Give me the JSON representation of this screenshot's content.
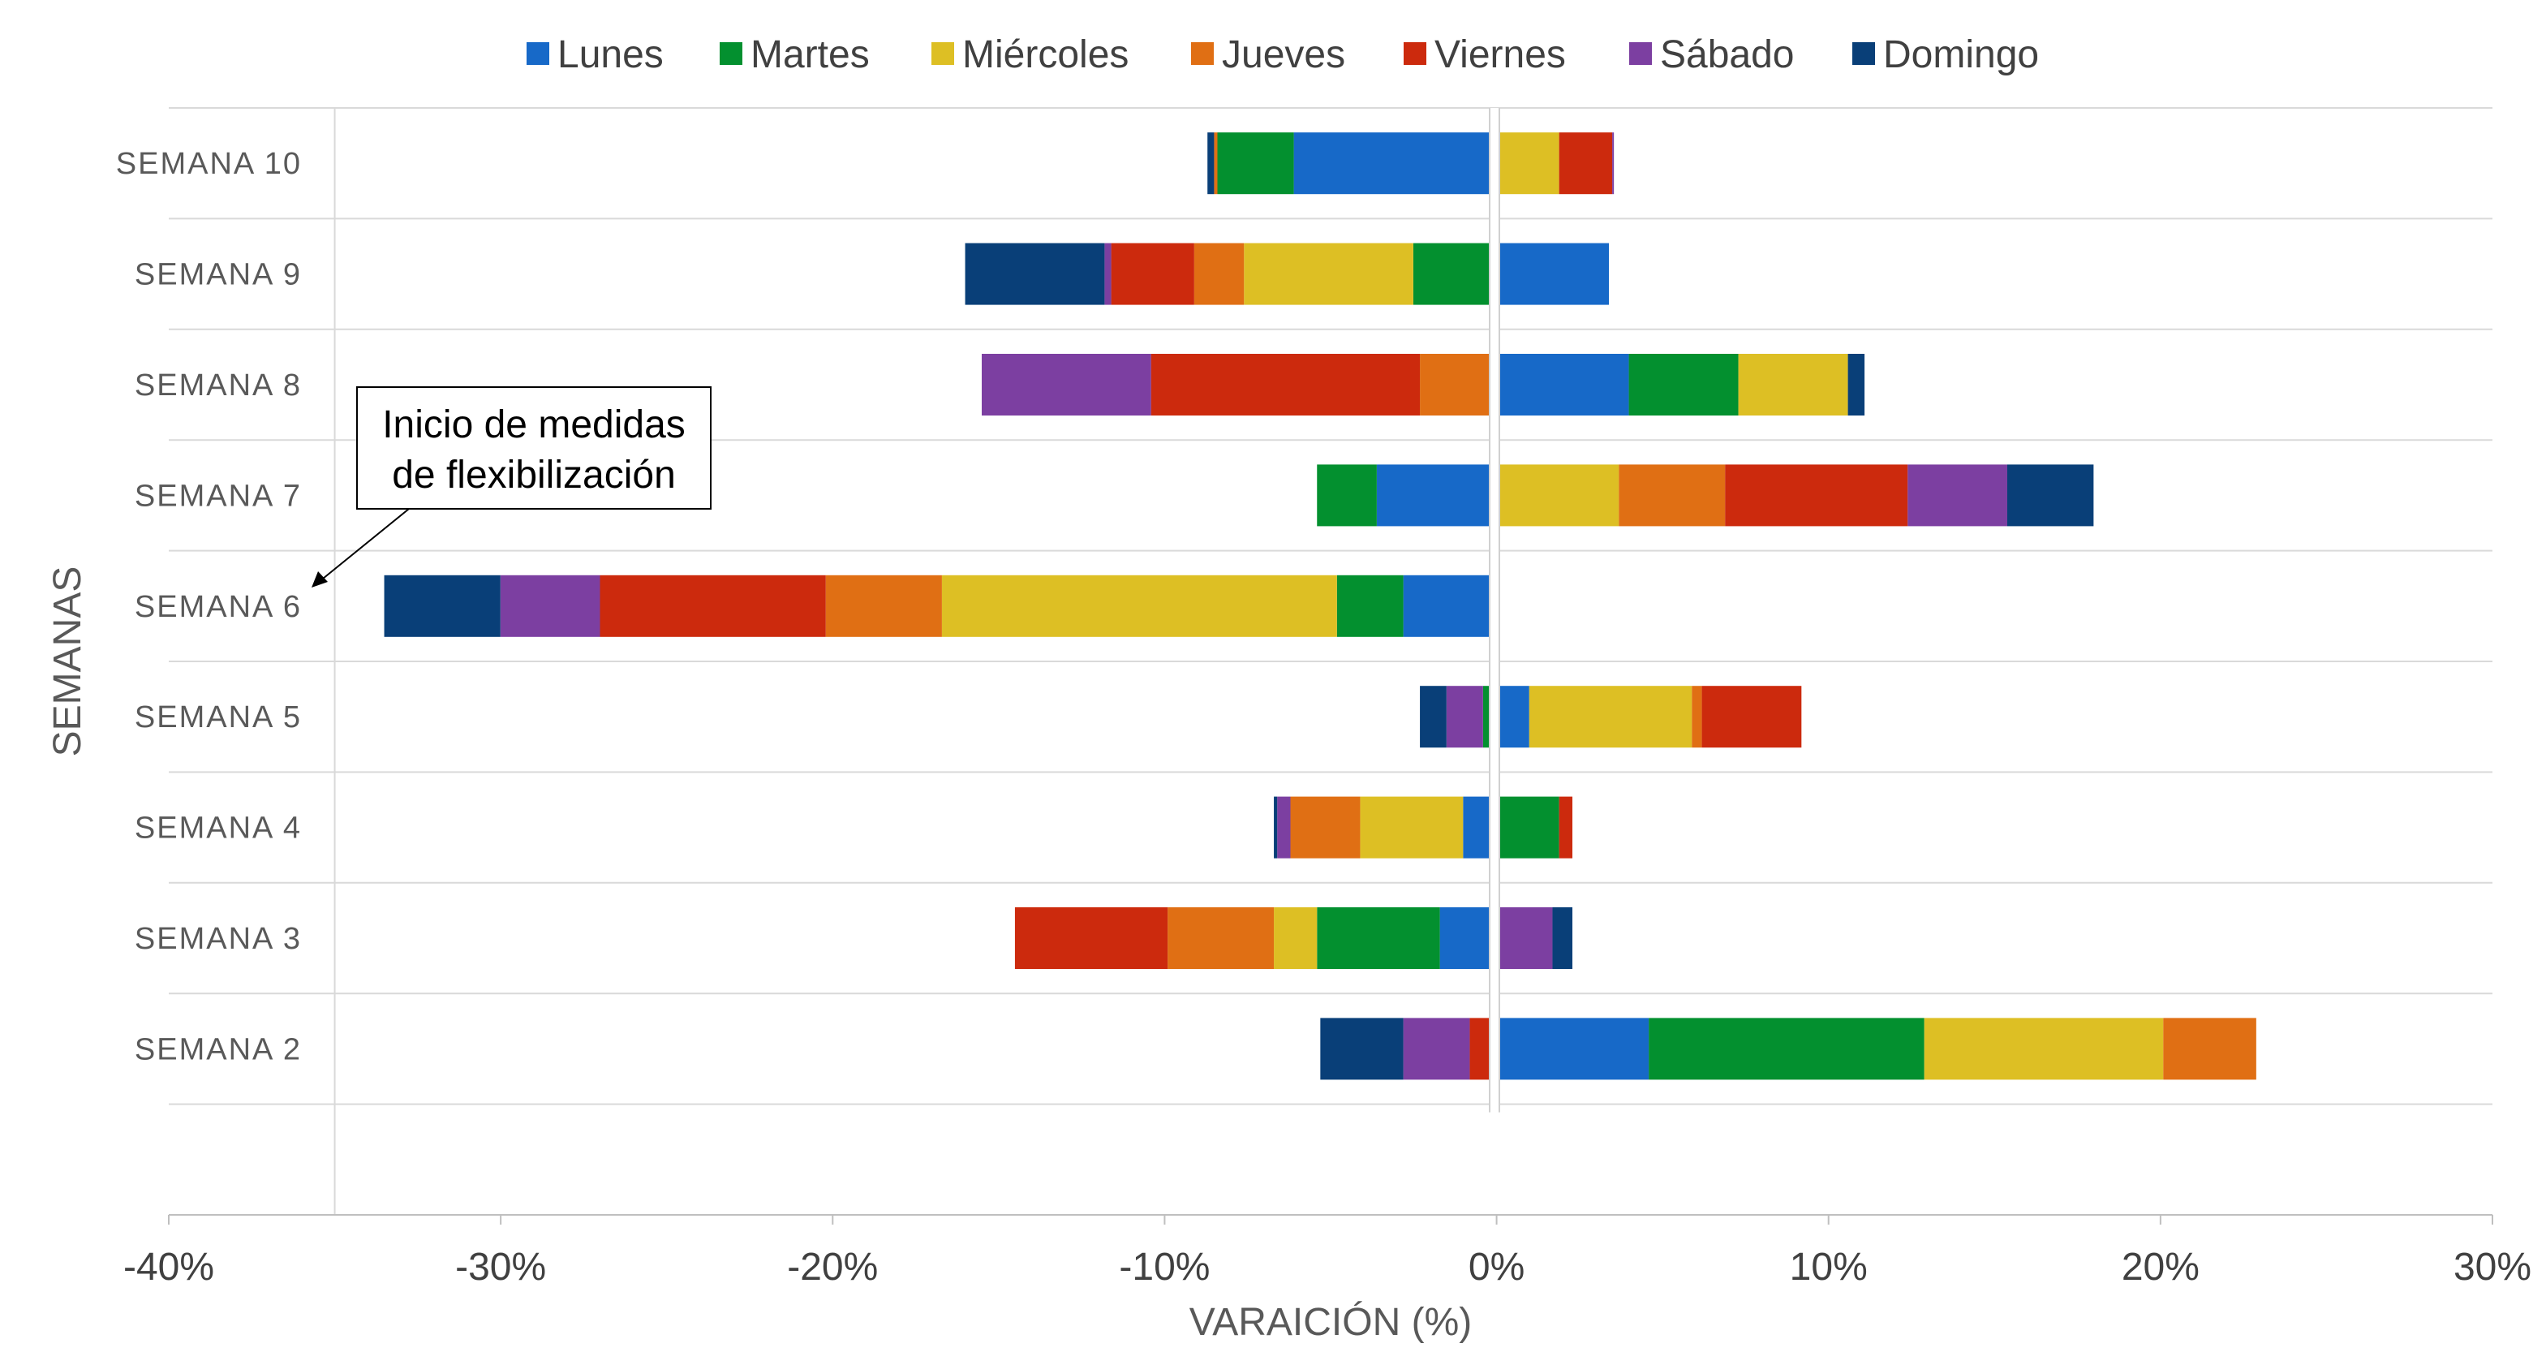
{
  "chart_data": {
    "type": "bar",
    "orientation": "horizontal",
    "stacked": "diverging",
    "xlabel": "VARAICIÓN (%)",
    "ylabel": "SEMANAS",
    "xlim": [
      -40,
      30
    ],
    "x_ticks": [
      "-40%",
      "-30%",
      "-20%",
      "-10%",
      "0%",
      "10%",
      "20%",
      "30%"
    ],
    "legend_position": "top",
    "grid": true,
    "categories": [
      "SEMANA 10",
      "SEMANA 9",
      "SEMANA 8",
      "SEMANA 7",
      "SEMANA 6",
      "SEMANA 5",
      "SEMANA 4",
      "SEMANA 3",
      "SEMANA 2"
    ],
    "series": [
      {
        "name": "Lunes",
        "color": "#1769C8",
        "values": [
          -5.9,
          3.3,
          3.9,
          -3.4,
          -2.6,
          0.9,
          -0.8,
          -1.5,
          4.5
        ]
      },
      {
        "name": "Martes",
        "color": "#03902F",
        "values": [
          -2.3,
          -2.3,
          3.3,
          -1.8,
          -2.0,
          -0.2,
          1.8,
          -3.7,
          8.3
        ]
      },
      {
        "name": "Miércoles",
        "color": "#DDBF24",
        "values": [
          1.8,
          -5.1,
          3.3,
          3.6,
          -11.9,
          4.9,
          -3.1,
          -1.3,
          7.2
        ]
      },
      {
        "name": "Jueves",
        "color": "#E06F14",
        "values": [
          -0.1,
          -1.5,
          -2.1,
          3.2,
          -3.5,
          0.3,
          -2.1,
          -3.2,
          2.8
        ]
      },
      {
        "name": "Viernes",
        "color": "#CC2A0D",
        "values": [
          1.6,
          -2.5,
          -8.1,
          5.5,
          -6.8,
          3.0,
          0.4,
          -4.6,
          -0.6
        ]
      },
      {
        "name": "Sábado",
        "color": "#7C3FA1",
        "values": [
          0.05,
          -0.2,
          -5.1,
          3.0,
          -3.0,
          -1.1,
          -0.4,
          1.6,
          -2.0
        ]
      },
      {
        "name": "Domingo",
        "color": "#093F78",
        "values": [
          -0.2,
          -4.2,
          0.5,
          2.6,
          -3.5,
          -0.8,
          -0.1,
          0.6,
          -2.5
        ]
      }
    ],
    "annotation": {
      "lines": [
        "Inicio de medidas",
        "de flexibilización"
      ],
      "target_category": "SEMANA 6"
    }
  }
}
